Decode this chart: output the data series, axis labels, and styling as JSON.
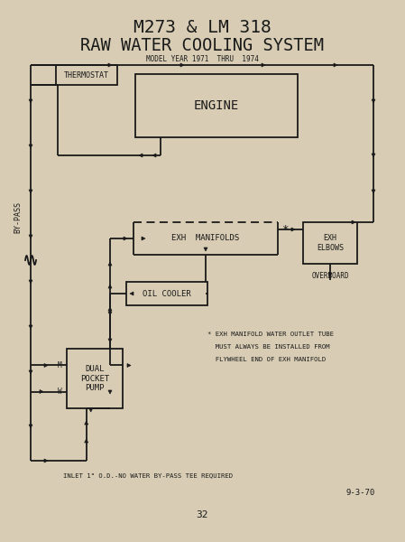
{
  "title1": "M273 & LM 318",
  "title2": "RAW WATER COOLING SYSTEM",
  "subtitle": "MODEL YEAR 1971  THRU  1974",
  "bg_color": "#d8cdb4",
  "line_color": "#1a1a1a",
  "footnote_line1": "* EXH MANIFOLD WATER OUTLET TUBE",
  "footnote_line2": "  MUST ALWAYS BE INSTALLED FROM",
  "footnote_line3": "  FLYWHEEL END OF EXH MANIFOLD",
  "inlet_text": "INLET 1\" O.D.-NO WATER BY-PASS TEE REQUIRED",
  "date_text": "9-3-70",
  "page_num": "32",
  "bypass_label": "BY-PASS"
}
